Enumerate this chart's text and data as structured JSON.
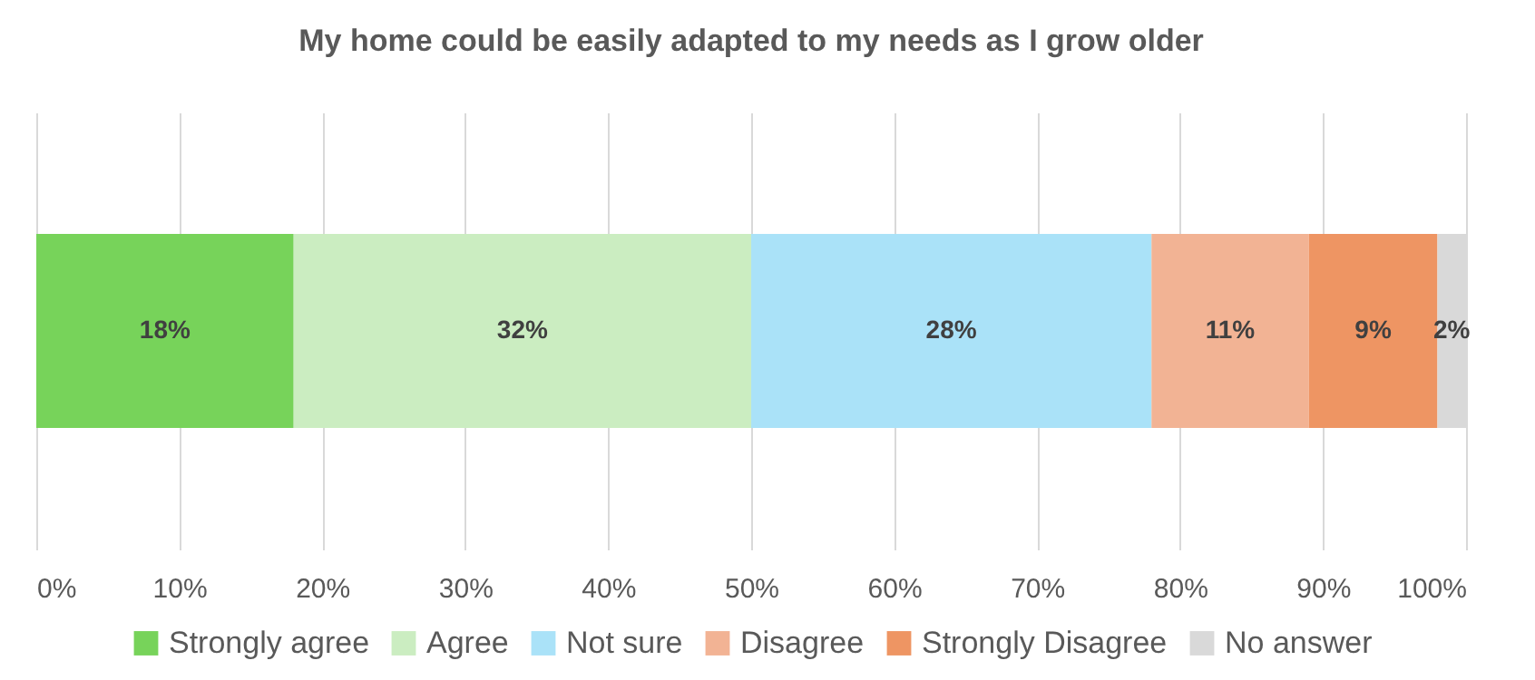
{
  "chart_data": {
    "type": "bar",
    "orientation": "horizontal",
    "stacked": true,
    "title": "My home could be easily adapted to my needs as I grow older",
    "categories": [
      null
    ],
    "series": [
      {
        "name": "Strongly agree",
        "color": "#77d35a",
        "values": [
          18
        ],
        "value_labels": [
          "18%"
        ]
      },
      {
        "name": "Agree",
        "color": "#cbedc1",
        "values": [
          32
        ],
        "value_labels": [
          "32%"
        ]
      },
      {
        "name": "Not sure",
        "color": "#aae2f8",
        "values": [
          28
        ],
        "value_labels": [
          "28%"
        ]
      },
      {
        "name": "Disagree",
        "color": "#f2b394",
        "values": [
          11
        ],
        "value_labels": [
          "11%"
        ]
      },
      {
        "name": "Strongly Disagree",
        "color": "#ee9563",
        "values": [
          9
        ],
        "value_labels": [
          "9%"
        ]
      },
      {
        "name": "No answer",
        "color": "#d9d9d9",
        "values": [
          2
        ],
        "value_labels": [
          "2%"
        ]
      }
    ],
    "xlim": [
      0,
      100
    ],
    "xticks": [
      {
        "value": 0,
        "label": "0%"
      },
      {
        "value": 10,
        "label": "10%"
      },
      {
        "value": 20,
        "label": "20%"
      },
      {
        "value": 30,
        "label": "30%"
      },
      {
        "value": 40,
        "label": "40%"
      },
      {
        "value": 50,
        "label": "50%"
      },
      {
        "value": 60,
        "label": "60%"
      },
      {
        "value": 70,
        "label": "70%"
      },
      {
        "value": 80,
        "label": "80%"
      },
      {
        "value": 90,
        "label": "90%"
      },
      {
        "value": 100,
        "label": "100%"
      }
    ],
    "grid": "x",
    "legend": "bottom"
  }
}
